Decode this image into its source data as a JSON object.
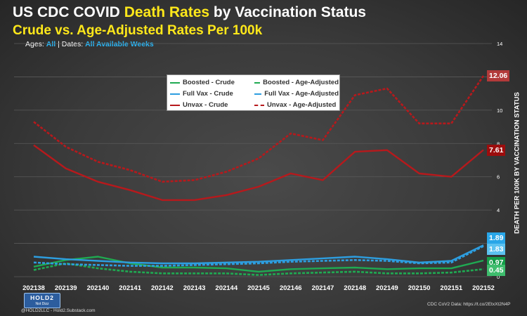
{
  "header": {
    "title_pre": "US CDC COVID ",
    "title_highlight": "Death Rates",
    "title_post": " by Vaccination Status",
    "subtitle": "Crude vs. Age-Adjusted Rates Per 100k",
    "filter_ages_label": "Ages:",
    "filter_ages_value": "All",
    "filter_sep": "|",
    "filter_dates_label": "Dates:",
    "filter_dates_value": "All Available Weeks"
  },
  "colors": {
    "unvax": "#b7191c",
    "fullvax": "#2d9ee0",
    "boosted": "#1faa52",
    "grid": "#5a5a5a"
  },
  "chart_data": {
    "type": "line",
    "ylabel": "DEATH PER 100K BY VACCINATION STATUS",
    "ylim": [
      0,
      14
    ],
    "yticks": [
      "0",
      "2",
      "4",
      "6",
      "8",
      "10",
      "12",
      "14"
    ],
    "y_axis_side": "right",
    "grid": true,
    "legend_position": "top-center",
    "x": [
      "202138",
      "202139",
      "202140",
      "202141",
      "202142",
      "202143",
      "202144",
      "202145",
      "202146",
      "202147",
      "202148",
      "202149",
      "202150",
      "202151",
      "202152"
    ],
    "series": [
      {
        "name": "Boosted - Crude",
        "group": "boosted",
        "dash": false,
        "values": [
          0.6,
          1.0,
          1.2,
          0.8,
          0.55,
          0.55,
          0.5,
          0.3,
          0.45,
          0.5,
          0.55,
          0.45,
          0.5,
          0.5,
          0.97
        ]
      },
      {
        "name": "Boosted - Age-Adjusted",
        "group": "boosted",
        "dash": true,
        "values": [
          0.4,
          0.8,
          0.5,
          0.3,
          0.2,
          0.2,
          0.2,
          0.1,
          0.2,
          0.25,
          0.3,
          0.2,
          0.2,
          0.25,
          0.45
        ]
      },
      {
        "name": "Full Vax - Crude",
        "group": "fullvax",
        "dash": false,
        "values": [
          1.2,
          1.05,
          0.95,
          0.85,
          0.8,
          0.8,
          0.85,
          0.9,
          1.0,
          1.1,
          1.2,
          1.05,
          0.85,
          0.95,
          1.89
        ]
      },
      {
        "name": "Full Vax - Age-Adjusted",
        "group": "fullvax",
        "dash": true,
        "values": [
          0.85,
          0.75,
          0.7,
          0.65,
          0.65,
          0.7,
          0.75,
          0.8,
          0.9,
          0.95,
          1.0,
          0.95,
          0.8,
          0.85,
          1.83
        ]
      },
      {
        "name": "Unvax - Crude",
        "group": "unvax",
        "dash": false,
        "values": [
          7.9,
          6.5,
          5.7,
          5.2,
          4.6,
          4.6,
          4.9,
          5.4,
          6.2,
          5.8,
          7.5,
          7.6,
          6.2,
          6.0,
          7.61
        ]
      },
      {
        "name": "Unvax - Age-Adjusted",
        "group": "unvax",
        "dash": true,
        "values": [
          9.3,
          7.8,
          6.9,
          6.4,
          5.7,
          5.8,
          6.3,
          7.1,
          8.6,
          8.2,
          10.9,
          11.3,
          9.2,
          9.2,
          12.06
        ]
      }
    ],
    "end_labels": [
      {
        "text": "12.06",
        "value": 12.06,
        "color": "#b23a3a"
      },
      {
        "text": "7.61",
        "value": 7.61,
        "color": "#9c0d0d"
      },
      {
        "text": "1.89",
        "value": 1.89,
        "color": "#29a6e8"
      },
      {
        "text": "1.83",
        "value": 1.83,
        "color": "#5cc2f0"
      },
      {
        "text": "0.97",
        "value": 0.97,
        "color": "#159e49"
      },
      {
        "text": "0.45",
        "value": 0.45,
        "color": "#3ebd6d"
      }
    ]
  },
  "footer": {
    "logo_text": "HOLD2",
    "logo_sub": "Not Dizz",
    "left_text": "@HOLD2LLC - Hold2.Substack.com",
    "right_text": "CDC CoV2 Data: https://t.co/2EtxXt2N4P"
  }
}
